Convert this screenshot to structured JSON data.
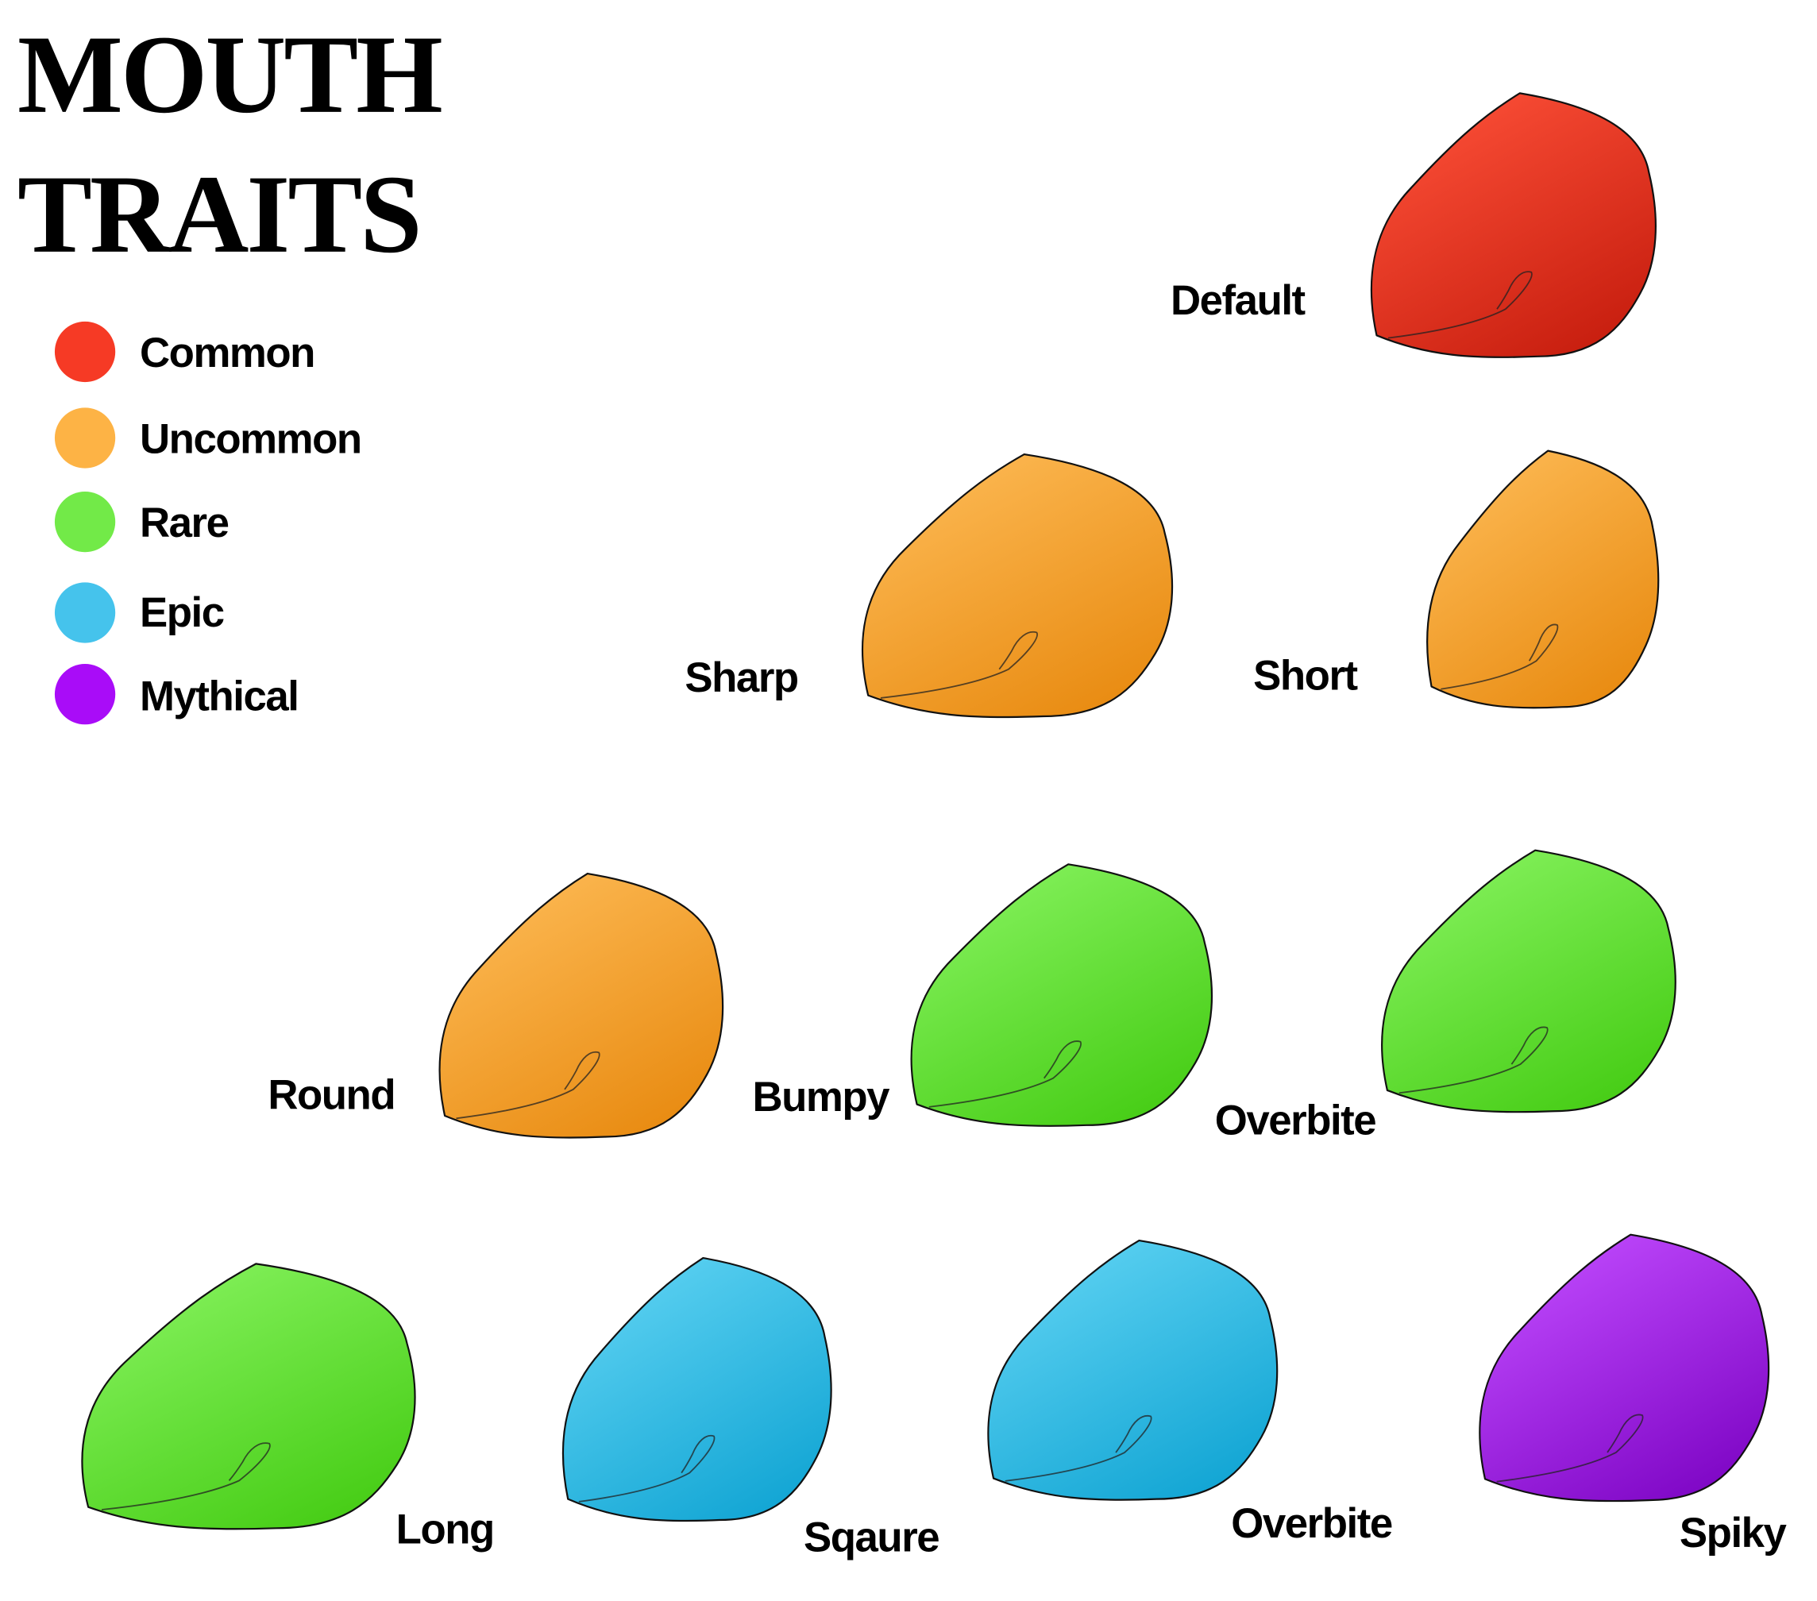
{
  "title": [
    "MOUTH",
    "TRAITS"
  ],
  "legend": [
    "Common",
    "Uncommon",
    "Rare",
    "Epic",
    "Mythical"
  ],
  "traits": [
    "Default",
    "Sharp",
    "Short",
    "Round",
    "Bumpy",
    "Overbite",
    "Long",
    "Sqaure",
    "Overbite",
    "Spiky"
  ]
}
